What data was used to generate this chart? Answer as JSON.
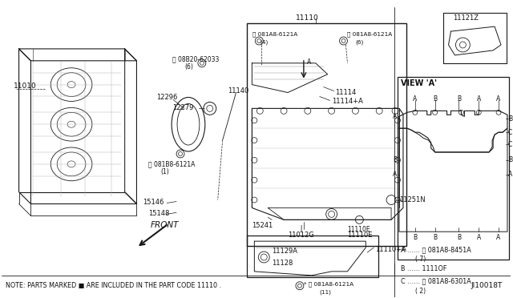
{
  "bg_color": "#ffffff",
  "line_color": "#1a1a1a",
  "text_color": "#111111",
  "note_text": "NOTE: PARTS MARKED ■ ARE INCLUDED IN THE PART CODE 11110 .",
  "diagram_id": "JI10018T",
  "figsize": [
    6.4,
    3.72
  ],
  "dpi": 100,
  "view_a_label": "VIEW 'A'",
  "legend": [
    "A …… Ⓑ 081A8-8451A",
    "         ( 7)",
    "B …… 1111OF",
    "C …… Ⓑ 081A8-6301A",
    "         ( 2)"
  ]
}
